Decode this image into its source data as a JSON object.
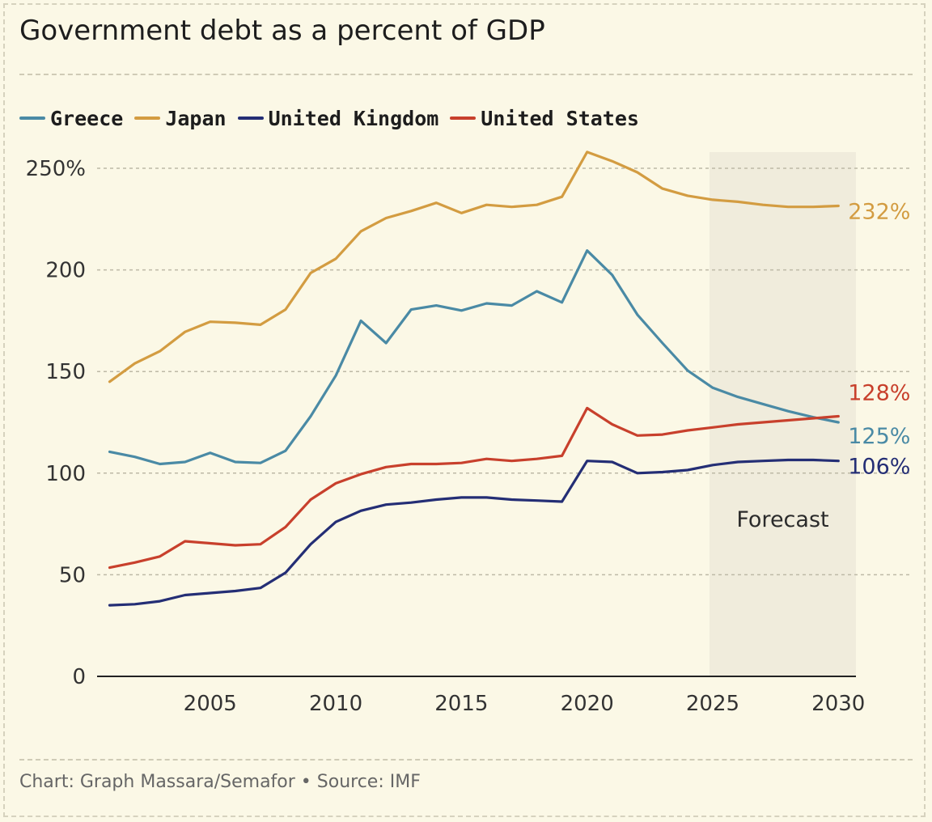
{
  "title": "Government debt as a percent of GDP",
  "credit": "Chart: Graph Massara/Semafor • Source: IMF",
  "chart_data": {
    "type": "line",
    "title": "Government debt as a percent of GDP",
    "xlabel": "",
    "ylabel": "",
    "xlim": [
      2000.5,
      2030.7
    ],
    "ylim": [
      0,
      250
    ],
    "x_ticks": [
      2005,
      2010,
      2015,
      2020,
      2025,
      2030
    ],
    "y_ticks": [
      0,
      50,
      100,
      150,
      200,
      250
    ],
    "y_tick_labels": [
      "0",
      "50",
      "100",
      "150",
      "200",
      "250%"
    ],
    "grid": "horizontal-dashed",
    "legend": "top-left",
    "forecast": {
      "label": "Forecast",
      "start": 2025,
      "end": 2031
    },
    "x": [
      2001,
      2002,
      2003,
      2004,
      2005,
      2006,
      2007,
      2008,
      2009,
      2010,
      2011,
      2012,
      2013,
      2014,
      2015,
      2016,
      2017,
      2018,
      2019,
      2020,
      2021,
      2022,
      2023,
      2024,
      2025,
      2026,
      2027,
      2028,
      2029,
      2030
    ],
    "series": [
      {
        "name": "Greece",
        "color": "#4a8aa5",
        "end_label": "125%",
        "values": [
          110.5,
          108,
          104.5,
          105.5,
          110,
          105.5,
          105,
          111,
          128,
          148,
          175,
          164,
          180.5,
          182.5,
          180,
          183.5,
          182.5,
          189.5,
          184,
          209.5,
          197.5,
          178,
          164,
          150.5,
          142,
          137.5,
          134,
          130.5,
          127.5,
          125
        ]
      },
      {
        "name": "Japan",
        "color": "#d39c41",
        "end_label": "232%",
        "values": [
          145,
          154,
          160,
          169.5,
          174.5,
          174,
          173,
          180.5,
          198.5,
          205.5,
          219,
          225.5,
          229,
          233,
          228,
          232,
          231,
          232,
          236,
          258,
          253.5,
          248,
          240,
          236.5,
          234.5,
          233.5,
          232,
          231,
          231,
          231.5
        ]
      },
      {
        "name": "United Kingdom",
        "color": "#242e75",
        "end_label": "106%",
        "values": [
          35,
          35.5,
          37,
          40,
          41,
          42,
          43.5,
          51,
          65,
          76,
          81.5,
          84.5,
          85.5,
          87,
          88,
          88,
          87,
          86.5,
          86,
          106,
          105.5,
          100,
          100.5,
          101.5,
          104,
          105.5,
          106,
          106.5,
          106.5,
          106
        ]
      },
      {
        "name": "United States",
        "color": "#c8402c",
        "end_label": "128%",
        "values": [
          53.5,
          56,
          59,
          66.5,
          65.5,
          64.5,
          65,
          73.5,
          87,
          95,
          99.5,
          103,
          104.5,
          104.5,
          105,
          107,
          106,
          107,
          108.5,
          132,
          124,
          118.5,
          119,
          121,
          122.5,
          124,
          125,
          126,
          127,
          128
        ]
      }
    ]
  }
}
